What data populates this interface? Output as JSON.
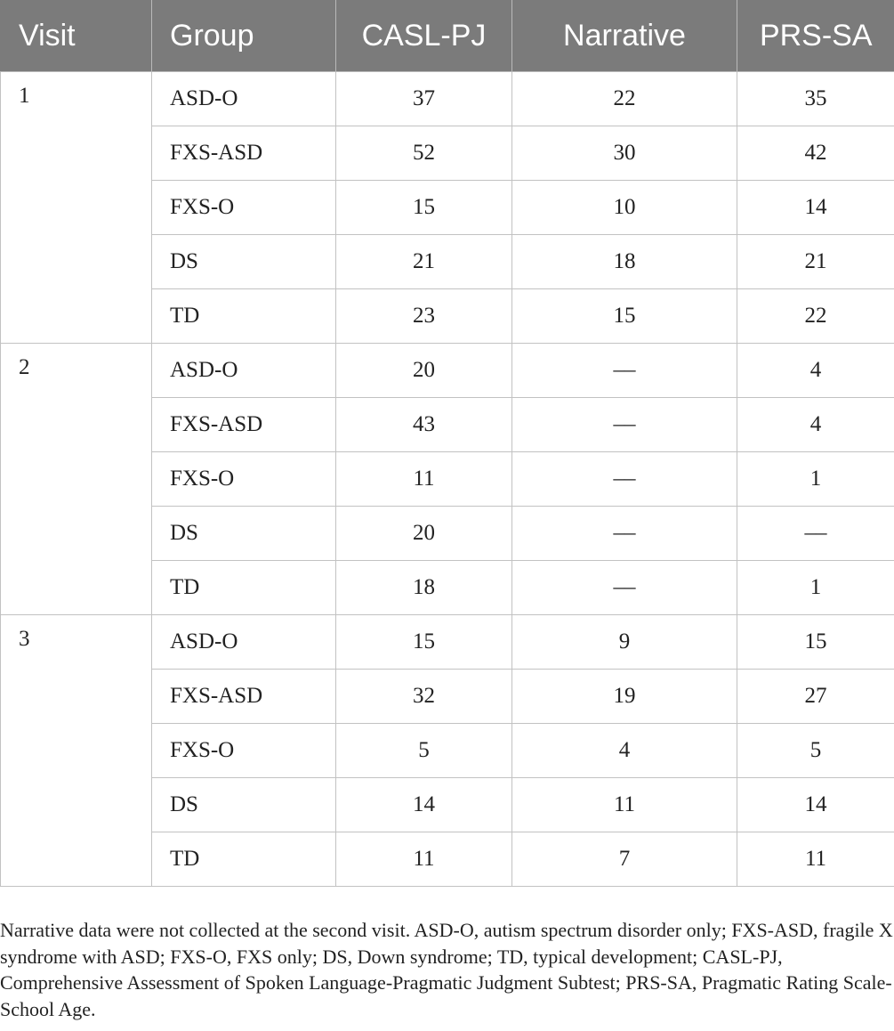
{
  "table": {
    "headers": [
      "Visit",
      "Group",
      "CASL-PJ",
      "Narrative",
      "PRS-SA"
    ],
    "visits": [
      {
        "visit": "1",
        "rows": [
          {
            "group": "ASD-O",
            "casl": "37",
            "narrative": "22",
            "prs": "35"
          },
          {
            "group": "FXS-ASD",
            "casl": "52",
            "narrative": "30",
            "prs": "42"
          },
          {
            "group": "FXS-O",
            "casl": "15",
            "narrative": "10",
            "prs": "14"
          },
          {
            "group": "DS",
            "casl": "21",
            "narrative": "18",
            "prs": "21"
          },
          {
            "group": "TD",
            "casl": "23",
            "narrative": "15",
            "prs": "22"
          }
        ]
      },
      {
        "visit": "2",
        "rows": [
          {
            "group": "ASD-O",
            "casl": "20",
            "narrative": "––",
            "prs": "4"
          },
          {
            "group": "FXS-ASD",
            "casl": "43",
            "narrative": "––",
            "prs": "4"
          },
          {
            "group": "FXS-O",
            "casl": "11",
            "narrative": "––",
            "prs": "1"
          },
          {
            "group": "DS",
            "casl": "20",
            "narrative": "––",
            "prs": "––"
          },
          {
            "group": "TD",
            "casl": "18",
            "narrative": "––",
            "prs": "1"
          }
        ]
      },
      {
        "visit": "3",
        "rows": [
          {
            "group": "ASD-O",
            "casl": "15",
            "narrative": "9",
            "prs": "15"
          },
          {
            "group": "FXS-ASD",
            "casl": "32",
            "narrative": "19",
            "prs": "27"
          },
          {
            "group": "FXS-O",
            "casl": "5",
            "narrative": "4",
            "prs": "5"
          },
          {
            "group": "DS",
            "casl": "14",
            "narrative": "11",
            "prs": "14"
          },
          {
            "group": "TD",
            "casl": "11",
            "narrative": "7",
            "prs": "11"
          }
        ]
      }
    ]
  },
  "footnote": "Narrative data were not collected at the second visit. ASD-O, autism spectrum disorder only; FXS-ASD, fragile X syndrome with ASD; FXS-O, FXS only; DS, Down syndrome; TD, typical development; CASL-PJ, Comprehensive Assessment of Spoken Language-Pragmatic Judgment Subtest; PRS-SA, Pragmatic Rating Scale-School Age.",
  "colors": {
    "header_bg": "#7b7b7b",
    "header_text": "#ffffff",
    "grid": "#c2c2c2"
  }
}
